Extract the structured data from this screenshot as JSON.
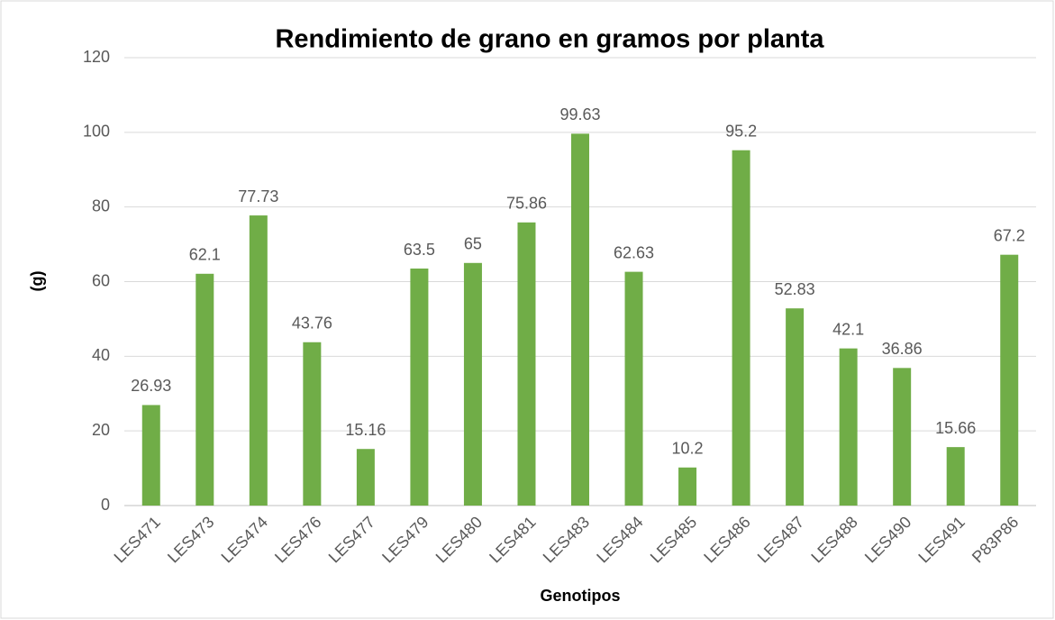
{
  "chart_data": {
    "type": "bar",
    "title": "Rendimiento de grano en gramos por planta",
    "x_label": "Genotipos",
    "y_label": "(g)",
    "categories": [
      "LES471",
      "LES473",
      "LES474",
      "LES476",
      "LES477",
      "LES479",
      "LES480",
      "LES481",
      "LES483",
      "LES484",
      "LES485",
      "LES486",
      "LES487",
      "LES488",
      "LES490",
      "LES491",
      "P83P86"
    ],
    "values": [
      26.93,
      62.1,
      77.73,
      43.76,
      15.16,
      63.5,
      65,
      75.86,
      99.63,
      62.63,
      10.2,
      95.2,
      52.83,
      42.1,
      36.86,
      15.66,
      67.2
    ],
    "color": "#70ad47",
    "ylim": [
      0,
      120
    ],
    "yticks": [
      0,
      20,
      40,
      60,
      80,
      100,
      120
    ],
    "grid": true
  }
}
